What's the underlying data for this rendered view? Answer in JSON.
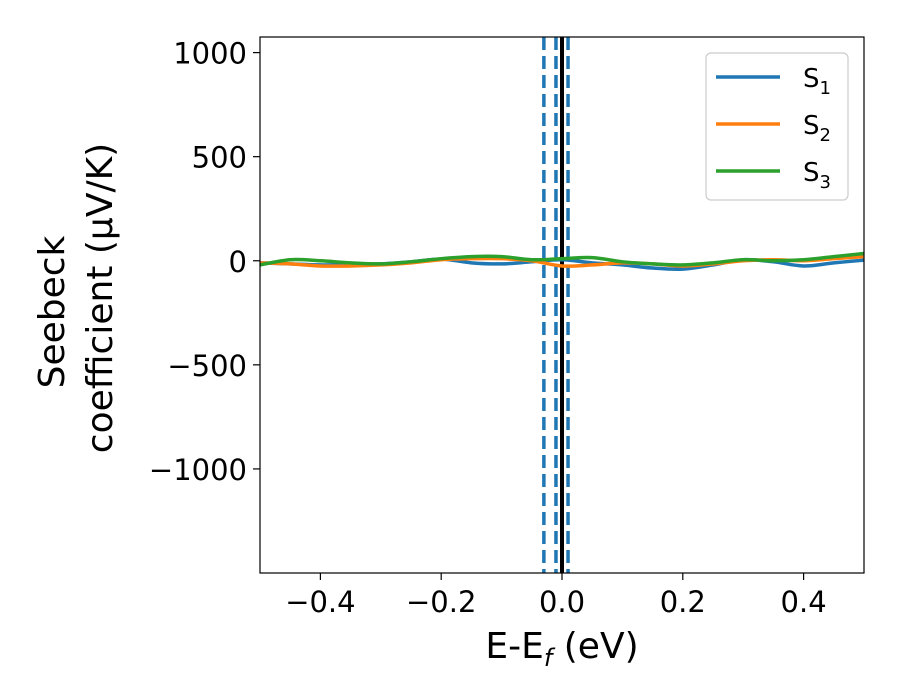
{
  "chart_data": {
    "type": "line",
    "xlabel_main": "E-E",
    "xlabel_sub": "f",
    "xlabel_unit": " (eV)",
    "ylabel_line1": "Seebeck",
    "ylabel_line2": "coefficient  (μV/K)",
    "xlim": [
      -0.5,
      0.5
    ],
    "ylim": [
      -1500,
      1075
    ],
    "x_ticks": [
      -0.4,
      -0.2,
      0.0,
      0.2,
      0.4
    ],
    "x_tick_labels": [
      "−0.4",
      "−0.2",
      "0.0",
      "0.2",
      "0.4"
    ],
    "y_ticks": [
      1000,
      500,
      0,
      -500,
      -1000
    ],
    "y_tick_labels": [
      "1000",
      "500",
      "0",
      "−500",
      "−1000"
    ],
    "grid": false,
    "legend": {
      "placement": "top-right",
      "entries": [
        {
          "main": "S",
          "sub": "1",
          "color": "#1f77b4"
        },
        {
          "main": "S",
          "sub": "2",
          "color": "#ff7f0e"
        },
        {
          "main": "S",
          "sub": "3",
          "color": "#2ca02c"
        }
      ]
    },
    "vlines": [
      {
        "x": 0.0,
        "color": "#000000",
        "style": "solid"
      },
      {
        "x": -0.03,
        "color": "#1f77b4",
        "style": "dashed"
      },
      {
        "x": -0.01,
        "color": "#1f77b4",
        "style": "dashed"
      },
      {
        "x": 0.01,
        "color": "#1f77b4",
        "style": "dashed"
      }
    ],
    "series": [
      {
        "name": "S1",
        "color": "#1f77b4",
        "x": [
          -0.5,
          -0.45,
          -0.4,
          -0.35,
          -0.3,
          -0.25,
          -0.2,
          -0.15,
          -0.1,
          -0.05,
          0.0,
          0.05,
          0.1,
          0.15,
          0.2,
          0.25,
          0.3,
          0.35,
          0.4,
          0.45,
          0.5
        ],
        "y": [
          -10,
          -15,
          -20,
          -18,
          -15,
          -5,
          8,
          -10,
          -15,
          -5,
          5,
          -10,
          -20,
          -35,
          -40,
          -20,
          5,
          -5,
          -25,
          -10,
          3
        ]
      },
      {
        "name": "S2",
        "color": "#ff7f0e",
        "x": [
          -0.5,
          -0.45,
          -0.4,
          -0.35,
          -0.3,
          -0.25,
          -0.2,
          -0.15,
          -0.1,
          -0.05,
          0.0,
          0.05,
          0.1,
          0.15,
          0.2,
          0.25,
          0.3,
          0.35,
          0.4,
          0.45,
          0.5
        ],
        "y": [
          -10,
          -15,
          -25,
          -25,
          -20,
          -10,
          5,
          10,
          10,
          0,
          -25,
          -20,
          -10,
          -15,
          -25,
          -15,
          0,
          5,
          0,
          10,
          20
        ]
      },
      {
        "name": "S3",
        "color": "#2ca02c",
        "x": [
          -0.5,
          -0.45,
          -0.4,
          -0.35,
          -0.3,
          -0.25,
          -0.2,
          -0.15,
          -0.1,
          -0.05,
          0.0,
          0.05,
          0.1,
          0.15,
          0.2,
          0.25,
          0.3,
          0.35,
          0.4,
          0.45,
          0.5
        ],
        "y": [
          -20,
          5,
          0,
          -10,
          -15,
          -5,
          10,
          20,
          20,
          5,
          10,
          15,
          -5,
          -15,
          -20,
          -10,
          5,
          0,
          5,
          20,
          35
        ]
      }
    ]
  }
}
